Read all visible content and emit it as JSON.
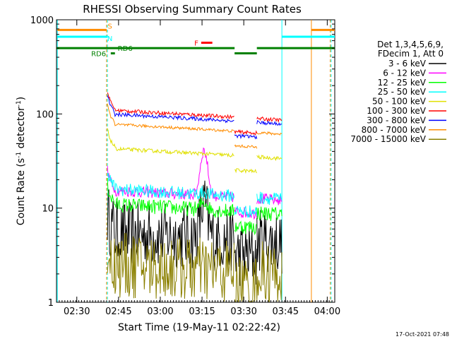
{
  "chart_data": {
    "type": "line",
    "title": "RHESSI Observing Summary Count Rates",
    "xlabel": "Start Time (19-May-11 02:22:42)",
    "ylabel_main": "Count Rate (s",
    "ylabel_sup1": "-1",
    "ylabel_mid": " detector",
    "ylabel_sup2": "-1",
    "ylabel_end": ")",
    "y_scale": "log",
    "ylim": [
      1,
      1000
    ],
    "xlim_minutes_after_0222": [
      0,
      100
    ],
    "x_ticks": [
      {
        "label": "02:30",
        "t": 7.3
      },
      {
        "label": "02:45",
        "t": 22.3
      },
      {
        "label": "03:00",
        "t": 37.3
      },
      {
        "label": "03:15",
        "t": 52.3
      },
      {
        "label": "03:30",
        "t": 67.3
      },
      {
        "label": "03:45",
        "t": 82.3
      },
      {
        "label": "04:00",
        "t": 97.3
      }
    ],
    "y_ticks": [
      {
        "label": "1",
        "v": 1
      },
      {
        "label": "10",
        "v": 10
      },
      {
        "label": "100",
        "v": 100
      },
      {
        "label": "1000",
        "v": 1000
      }
    ],
    "legend_header": [
      "Det 1,3,4,5,6,9,",
      "FDecim 1, Att 0"
    ],
    "series": [
      {
        "name": "3 - 6 keV",
        "color": "#000000",
        "base": 5.5,
        "noise": 0.35,
        "peak": 2.2
      },
      {
        "name": "6 - 12 keV",
        "color": "#ff00ff",
        "base": 15.5,
        "noise": 0.06,
        "peak": 3.0
      },
      {
        "name": "12 - 25 keV",
        "color": "#00ff00",
        "base": 11,
        "noise": 0.08,
        "peak": 1.2
      },
      {
        "name": "25 - 50 keV",
        "color": "#00ffff",
        "base": 16,
        "noise": 0.07,
        "peak": 1.05
      },
      {
        "name": "50 - 100 keV",
        "color": "#e0e000",
        "base": 43,
        "noise": 0.02,
        "peak": 1.0
      },
      {
        "name": "100 - 300 keV",
        "color": "#ff0000",
        "base": 110,
        "noise": 0.02,
        "peak": 1.0
      },
      {
        "name": "300 - 800 keV",
        "color": "#0000ff",
        "base": 100,
        "noise": 0.02,
        "peak": 1.0
      },
      {
        "name": "800 - 7000 keV",
        "color": "#ff8c00",
        "base": 78,
        "noise": 0.015,
        "peak": 1.0
      },
      {
        "name": "7000 - 15000 keV",
        "color": "#8b8000",
        "base": 2.5,
        "noise": 0.35,
        "peak": 1.0
      }
    ],
    "flags": [
      {
        "label": "S",
        "color": "#ff8c00",
        "value": 780
      },
      {
        "label": "N",
        "color": "#00ffff",
        "value": 660
      },
      {
        "label": "RD6",
        "color": "#008000",
        "value": 500
      },
      {
        "label": "RD6",
        "color": "#008000",
        "value": 440
      },
      {
        "label": "F",
        "color": "#ff0000",
        "value": 570
      }
    ],
    "footer_timestamp": "17-Oct-2021 07:48"
  }
}
